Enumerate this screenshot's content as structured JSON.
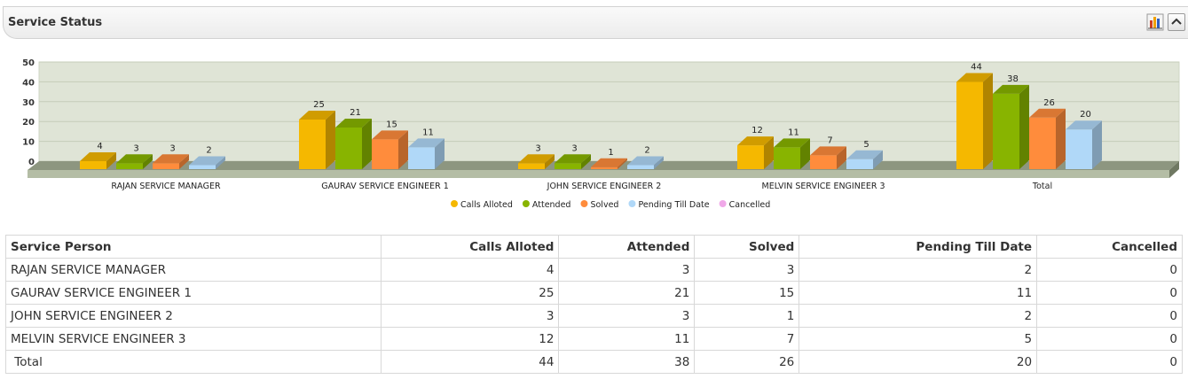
{
  "panel": {
    "title": "Service Status"
  },
  "icons": {
    "chart_toggle": "bar-chart-icon",
    "collapse": "chevron-up-icon"
  },
  "chart_data": {
    "type": "bar",
    "categories": [
      "RAJAN SERVICE MANAGER",
      "GAURAV SERVICE ENGINEER 1",
      "JOHN SERVICE ENGINEER 2",
      "MELVIN SERVICE ENGINEER 3",
      "Total"
    ],
    "series": [
      {
        "name": "Calls Alloted",
        "values": [
          4,
          25,
          3,
          12,
          44
        ],
        "color": "#f5b800"
      },
      {
        "name": "Attended",
        "values": [
          3,
          21,
          3,
          11,
          38
        ],
        "color": "#88b400"
      },
      {
        "name": "Solved",
        "values": [
          3,
          15,
          1,
          7,
          26
        ],
        "color": "#ff8c3c"
      },
      {
        "name": "Pending Till Date",
        "values": [
          2,
          11,
          2,
          5,
          20
        ],
        "color": "#b0d8f8"
      },
      {
        "name": "Cancelled",
        "values": [
          0,
          0,
          0,
          0,
          0
        ],
        "color": "#f0a8e8"
      }
    ],
    "yticks": [
      0,
      10,
      20,
      30,
      40,
      50
    ],
    "ylim": [
      0,
      50
    ],
    "legend_position": "bottom",
    "grid": true,
    "style": "3d"
  },
  "table": {
    "headers": [
      "Service Person",
      "Calls Alloted",
      "Attended",
      "Solved",
      "Pending Till Date",
      "Cancelled"
    ],
    "rows": [
      [
        "RAJAN SERVICE MANAGER",
        "4",
        "3",
        "3",
        "2",
        "0"
      ],
      [
        "GAURAV SERVICE ENGINEER 1",
        "25",
        "21",
        "15",
        "11",
        "0"
      ],
      [
        "JOHN SERVICE ENGINEER 2",
        "3",
        "3",
        "1",
        "2",
        "0"
      ],
      [
        "MELVIN SERVICE ENGINEER 3",
        "12",
        "11",
        "7",
        "5",
        "0"
      ],
      [
        " Total",
        "44",
        "38",
        "26",
        "20",
        "0"
      ]
    ]
  }
}
